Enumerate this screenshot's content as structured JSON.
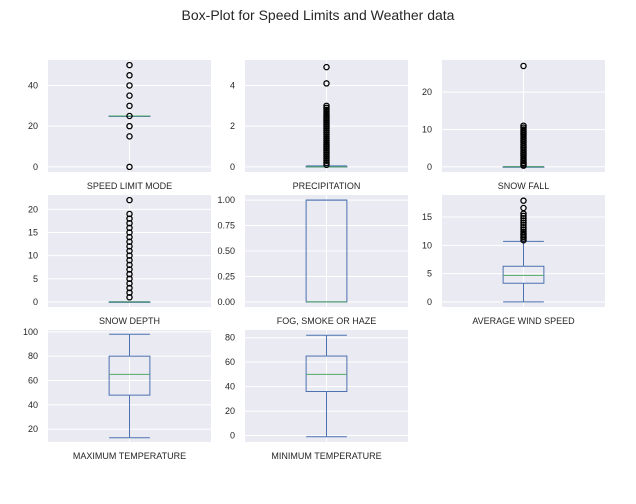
{
  "title": "Box-Plot for Speed Limits and Weather data",
  "colors": {
    "background": "#eaeaf2",
    "grid": "#ffffff",
    "box": "#4c72b0",
    "median": "#55a868",
    "flier": "#000000"
  },
  "chart_data": [
    {
      "type": "box",
      "xlabel": "SPEED LIMIT MODE",
      "ylim": [
        -2.5,
        52.5
      ],
      "yticks": [
        0,
        20,
        40
      ],
      "ytick_labels": [
        "0",
        "20",
        "40"
      ],
      "stats": {
        "whislo": 25,
        "q1": 25,
        "med": 25,
        "q3": 25,
        "whishi": 25
      },
      "fliers": [
        0,
        15,
        20,
        25,
        30,
        35,
        40,
        45,
        50
      ]
    },
    {
      "type": "box",
      "xlabel": "PRECIPITATION",
      "ylim": [
        -0.25,
        5.25
      ],
      "yticks": [
        0,
        2,
        4
      ],
      "ytick_labels": [
        "0",
        "2",
        "4"
      ],
      "stats": {
        "whislo": 0,
        "q1": 0,
        "med": 0,
        "q3": 0.02,
        "whishi": 0.05
      },
      "fliers": [
        0.1,
        0.2,
        0.3,
        0.4,
        0.5,
        0.6,
        0.7,
        0.8,
        0.9,
        1.0,
        1.1,
        1.2,
        1.3,
        1.4,
        1.5,
        1.6,
        1.7,
        1.8,
        1.9,
        2.0,
        2.1,
        2.2,
        2.3,
        2.4,
        2.5,
        2.6,
        2.7,
        2.8,
        2.9,
        3.0,
        4.1,
        4.9
      ]
    },
    {
      "type": "box",
      "xlabel": "SNOW FALL",
      "ylim": [
        -1.4,
        28.6
      ],
      "yticks": [
        0,
        10,
        20
      ],
      "ytick_labels": [
        "0",
        "10",
        "20"
      ],
      "stats": {
        "whislo": 0,
        "q1": 0,
        "med": 0,
        "q3": 0,
        "whishi": 0
      },
      "fliers": [
        0.3,
        0.6,
        1,
        1.5,
        2,
        2.5,
        3,
        3.5,
        4,
        4.5,
        5,
        5.5,
        6,
        6.5,
        7,
        7.5,
        8,
        8.5,
        9,
        9.5,
        10,
        10.5,
        11,
        27
      ]
    },
    {
      "type": "box",
      "xlabel": "SNOW DEPTH",
      "ylim": [
        -1.1,
        23.1
      ],
      "yticks": [
        0,
        5,
        10,
        15,
        20
      ],
      "ytick_labels": [
        "0",
        "5",
        "10",
        "15",
        "20"
      ],
      "stats": {
        "whislo": 0,
        "q1": 0,
        "med": 0,
        "q3": 0,
        "whishi": 0
      },
      "fliers": [
        1,
        2,
        3,
        4,
        5,
        6,
        7,
        8,
        9,
        10,
        11,
        12,
        13,
        14,
        15,
        16,
        17,
        18,
        19,
        22
      ]
    },
    {
      "type": "box",
      "xlabel": "FOG, SMOKE OR HAZE",
      "ylim": [
        -0.05,
        1.05
      ],
      "yticks": [
        0,
        0.25,
        0.5,
        0.75,
        1.0
      ],
      "ytick_labels": [
        "0.00",
        "0.25",
        "0.50",
        "0.75",
        "1.00"
      ],
      "stats": {
        "whislo": 0,
        "q1": 0,
        "med": 0,
        "q3": 1,
        "whishi": 1
      },
      "fliers": []
    },
    {
      "type": "box",
      "xlabel": "AVERAGE WIND SPEED",
      "ylim": [
        -0.9,
        18.9
      ],
      "yticks": [
        0,
        5,
        10,
        15
      ],
      "ytick_labels": [
        "0",
        "5",
        "10",
        "15"
      ],
      "stats": {
        "whislo": 0,
        "q1": 3.3,
        "med": 4.7,
        "q3": 6.3,
        "whishi": 10.7
      },
      "fliers": [
        10.9,
        11.2,
        11.5,
        11.8,
        12.1,
        12.4,
        12.8,
        13.2,
        13.6,
        14.0,
        14.4,
        14.8,
        15.2,
        15.6,
        16.6,
        17.9
      ]
    },
    {
      "type": "box",
      "xlabel": "MAXIMUM TEMPERATURE",
      "ylim": [
        9.5,
        101.5
      ],
      "yticks": [
        20,
        40,
        60,
        80,
        100
      ],
      "ytick_labels": [
        "20",
        "40",
        "60",
        "80",
        "100"
      ],
      "stats": {
        "whislo": 13,
        "q1": 48,
        "med": 65,
        "q3": 80,
        "whishi": 98
      },
      "fliers": []
    },
    {
      "type": "box",
      "xlabel": "MINIMUM TEMPERATURE",
      "ylim": [
        -5.3,
        86.3
      ],
      "yticks": [
        0,
        20,
        40,
        60,
        80
      ],
      "ytick_labels": [
        "0",
        "20",
        "40",
        "60",
        "80"
      ],
      "stats": {
        "whislo": -1,
        "q1": 36,
        "med": 50,
        "q3": 65,
        "whishi": 82
      },
      "fliers": []
    }
  ]
}
